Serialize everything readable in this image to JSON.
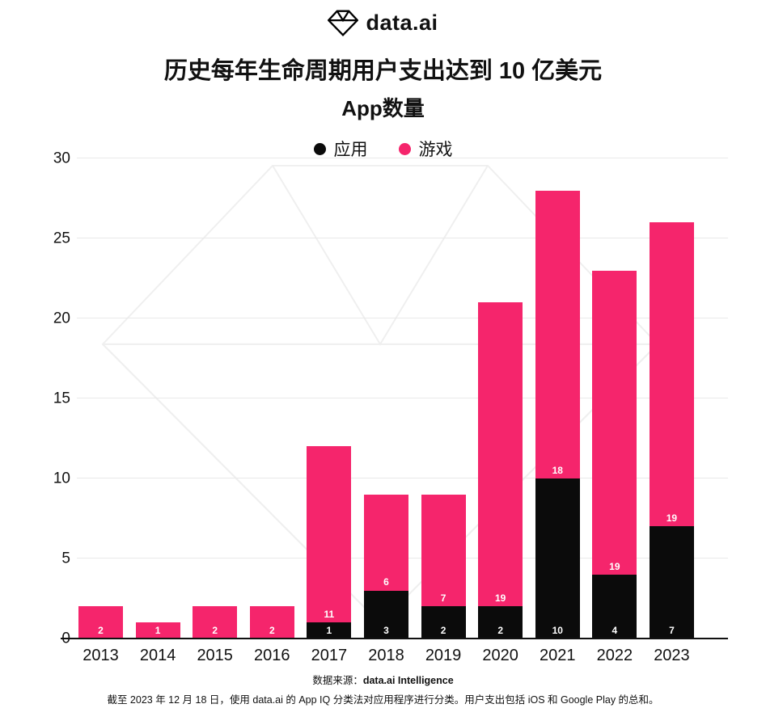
{
  "logo": {
    "text": "data.ai"
  },
  "title": {
    "line1": "历史每年生命周期用户支出达到 10 亿美元",
    "line2": "App数量"
  },
  "legend": [
    {
      "label": "应用",
      "color": "#0b0b0b"
    },
    {
      "label": "游戏",
      "color": "#f5256c"
    }
  ],
  "chart_data": {
    "type": "bar",
    "stacked": true,
    "title": "历史每年生命周期用户支出达到 10 亿美元 App数量",
    "categories": [
      "2013",
      "2014",
      "2015",
      "2016",
      "2017",
      "2018",
      "2019",
      "2020",
      "2021",
      "2022",
      "2023"
    ],
    "series": [
      {
        "name": "应用",
        "color": "#0b0b0b",
        "values": [
          0,
          0,
          0,
          0,
          1,
          3,
          2,
          2,
          10,
          4,
          7
        ]
      },
      {
        "name": "游戏",
        "color": "#f5256c",
        "values": [
          2,
          1,
          2,
          2,
          11,
          6,
          7,
          19,
          18,
          19,
          19
        ]
      }
    ],
    "ylim": [
      0,
      30
    ],
    "yticks": [
      0,
      5,
      10,
      15,
      20,
      25,
      30
    ],
    "grid": true,
    "legend_position": "top",
    "value_labels": true
  },
  "footer": {
    "source_prefix": "数据来源：",
    "source_bold": "data.ai Intelligence",
    "note": "截至 2023 年 12 月 18 日，使用 data.ai 的 App IQ 分类法对应用程序进行分类。用户支出包括 iOS 和 Google Play 的总和。"
  }
}
